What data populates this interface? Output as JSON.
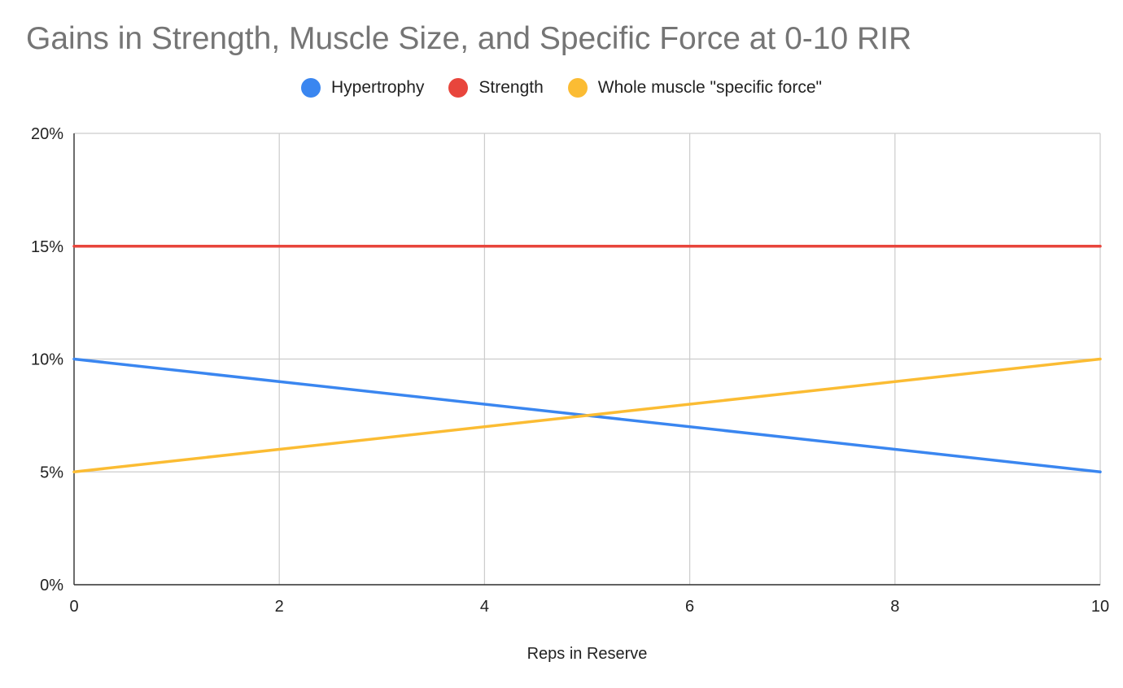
{
  "chart_data": {
    "type": "line",
    "title": "Gains in Strength, Muscle Size, and Specific Force at 0-10 RIR",
    "xlabel": "Reps in Reserve",
    "ylabel": "",
    "x": [
      0,
      10
    ],
    "xlim": [
      0,
      10
    ],
    "ylim": [
      0,
      20
    ],
    "xticks": [
      0,
      2,
      4,
      6,
      8,
      10
    ],
    "yticks": [
      0,
      5,
      10,
      15,
      20
    ],
    "ytick_labels": [
      "0%",
      "5%",
      "10%",
      "15%",
      "20%"
    ],
    "grid": true,
    "legend_position": "top",
    "series": [
      {
        "name": "Hypertrophy",
        "color": "#3a86f0",
        "values": [
          10,
          5
        ]
      },
      {
        "name": "Strength",
        "color": "#e8453c",
        "values": [
          15,
          15
        ]
      },
      {
        "name": "Whole muscle \"specific force\"",
        "color": "#fbbc33",
        "values": [
          5,
          10
        ]
      }
    ]
  }
}
